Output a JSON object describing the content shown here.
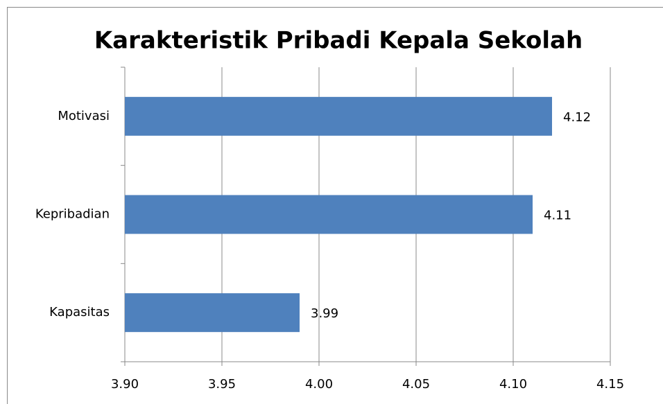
{
  "chart_data": {
    "type": "bar",
    "orientation": "horizontal",
    "title": "Karakteristik Pribadi Kepala Sekolah",
    "categories": [
      "Motivasi",
      "Kepribadian",
      "Kapasitas"
    ],
    "values": [
      4.12,
      4.11,
      3.99
    ],
    "color": "#4f81bd",
    "xlim": [
      3.9,
      4.15
    ],
    "xticks": [
      {
        "value": 3.9,
        "label": "3.90"
      },
      3.95,
      {
        "value": 4.0,
        "label": "4.00"
      },
      4.05,
      {
        "value": 4.1,
        "label": "4.10"
      },
      4.15
    ],
    "grid": true
  }
}
